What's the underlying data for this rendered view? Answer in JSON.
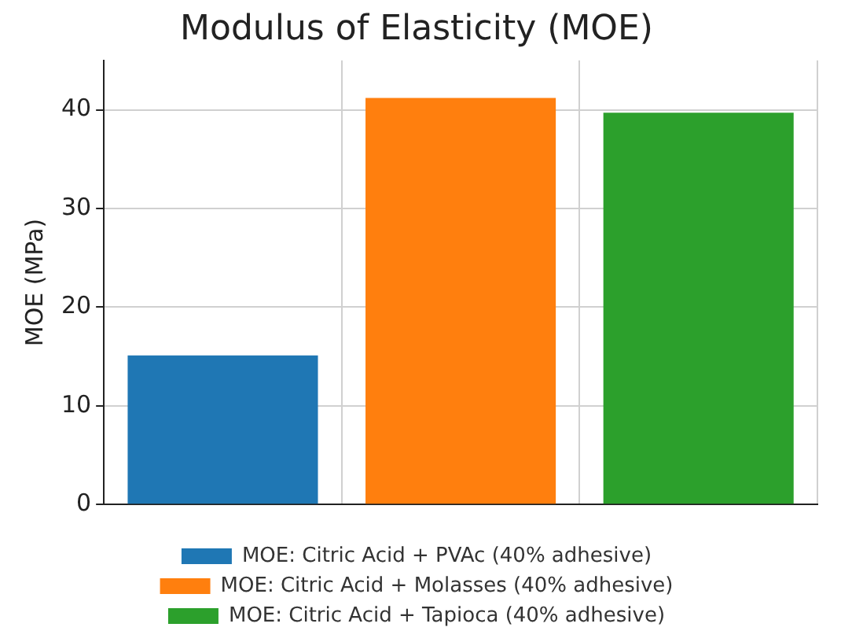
{
  "chart_data": {
    "type": "bar",
    "title": "Modulus of Elasticity (MOE)",
    "ylabel": "MOE (MPa)",
    "categories": [
      null,
      null,
      null
    ],
    "series": [
      {
        "name": "MOE: Citric Acid + PVAc (40% adhesive)",
        "color": "#1f77b4",
        "values": [
          15.1,
          null,
          null
        ]
      },
      {
        "name": "MOE: Citric Acid + Molasses (40% adhesive)",
        "color": "#ff7f0e",
        "values": [
          null,
          41.2,
          null
        ]
      },
      {
        "name": "MOE: Citric Acid + Tapioca (40% adhesive)",
        "color": "#2ca02c",
        "values": [
          null,
          null,
          39.7
        ]
      }
    ],
    "ylim": [
      0,
      45
    ],
    "yticks": [
      0,
      10,
      20,
      30,
      40
    ],
    "grid": true,
    "legend": "bottom"
  }
}
